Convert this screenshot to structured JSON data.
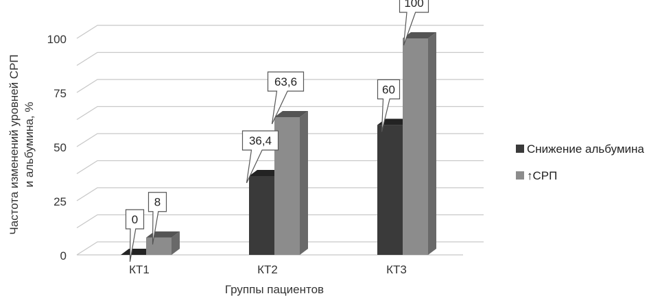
{
  "chart_data": {
    "type": "bar",
    "title": "",
    "ylabel_line1": "Частота изменений уровней СРП",
    "ylabel_line2": "и альбумина, %",
    "xlabel": "Группы пациентов",
    "categories": [
      "КТ1",
      "КТ2",
      "КТ3"
    ],
    "yticks": [
      "0",
      "25",
      "50",
      "75",
      "100"
    ],
    "ylim": [
      0,
      100
    ],
    "grid": true,
    "legend_position": "right",
    "series": [
      {
        "name": "Снижение альбумина",
        "values": [
          0,
          36.4,
          60
        ],
        "labels": [
          "0",
          "36,4",
          "60"
        ],
        "color": "#3a3a3a"
      },
      {
        "name": "↑СРП",
        "values": [
          8,
          63.6,
          100
        ],
        "labels": [
          "8",
          "63,6",
          "100"
        ],
        "color": "#8c8c8c"
      }
    ]
  }
}
